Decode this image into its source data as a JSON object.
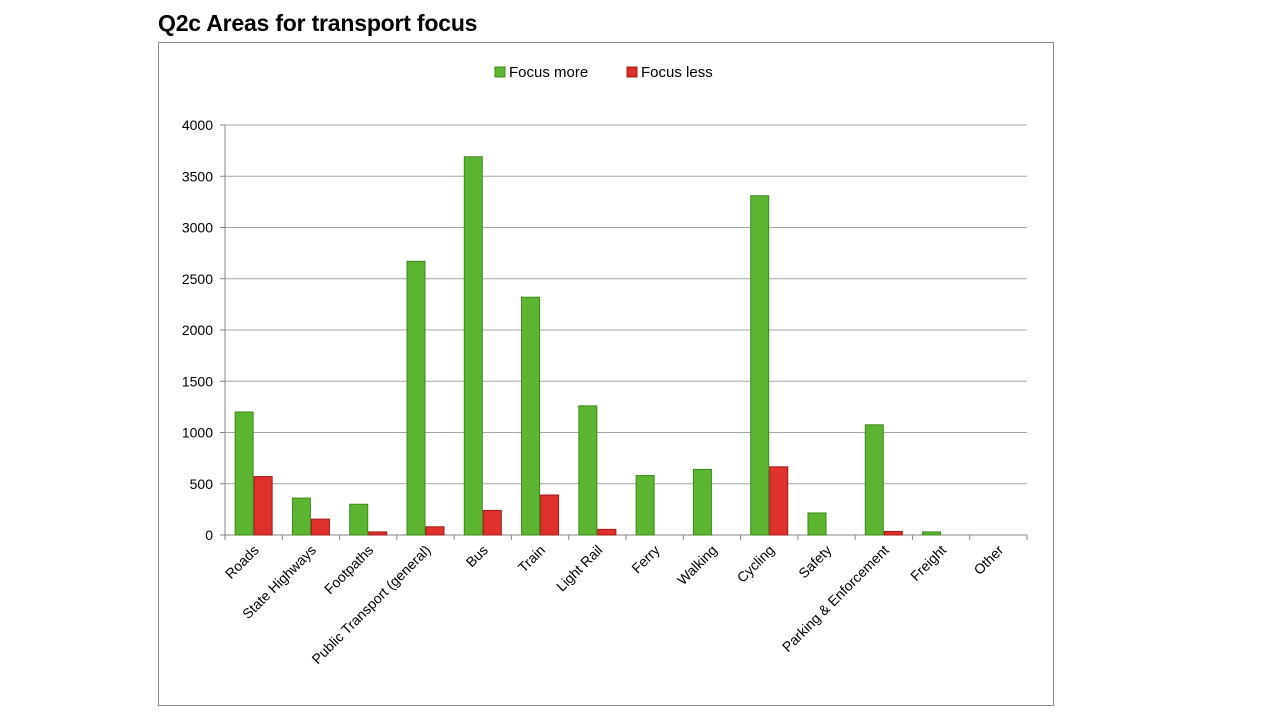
{
  "page": {
    "title": "Q2c Areas for transport focus"
  },
  "colors": {
    "focus_more": "#5cb531",
    "focus_more_edge": "#3c8a1a",
    "focus_less": "#e0302c",
    "focus_less_edge": "#a01a16",
    "grid": "#a6a6a6",
    "axis": "#868686"
  },
  "chart_data": {
    "type": "bar",
    "title": "",
    "xlabel": "",
    "ylabel": "",
    "ylim": [
      0,
      4000
    ],
    "yticks": [
      0,
      500,
      1000,
      1500,
      2000,
      2500,
      3000,
      3500,
      4000
    ],
    "grid": true,
    "legend_position": "top-center",
    "categories": [
      "Roads",
      "State Highways",
      "Footpaths",
      "Public Transport (general)",
      "Bus",
      "Train",
      "Light Rail",
      "Ferry",
      "Walking",
      "Cycling",
      "Safety",
      "Parking & Enforcement",
      "Freight",
      "Other"
    ],
    "series": [
      {
        "name": "Focus more",
        "values": [
          1200,
          360,
          300,
          2670,
          3690,
          2320,
          1260,
          580,
          640,
          3310,
          215,
          1075,
          30,
          0
        ]
      },
      {
        "name": "Focus less",
        "values": [
          570,
          155,
          30,
          80,
          240,
          390,
          55,
          0,
          0,
          665,
          0,
          35,
          0,
          0
        ]
      }
    ]
  }
}
